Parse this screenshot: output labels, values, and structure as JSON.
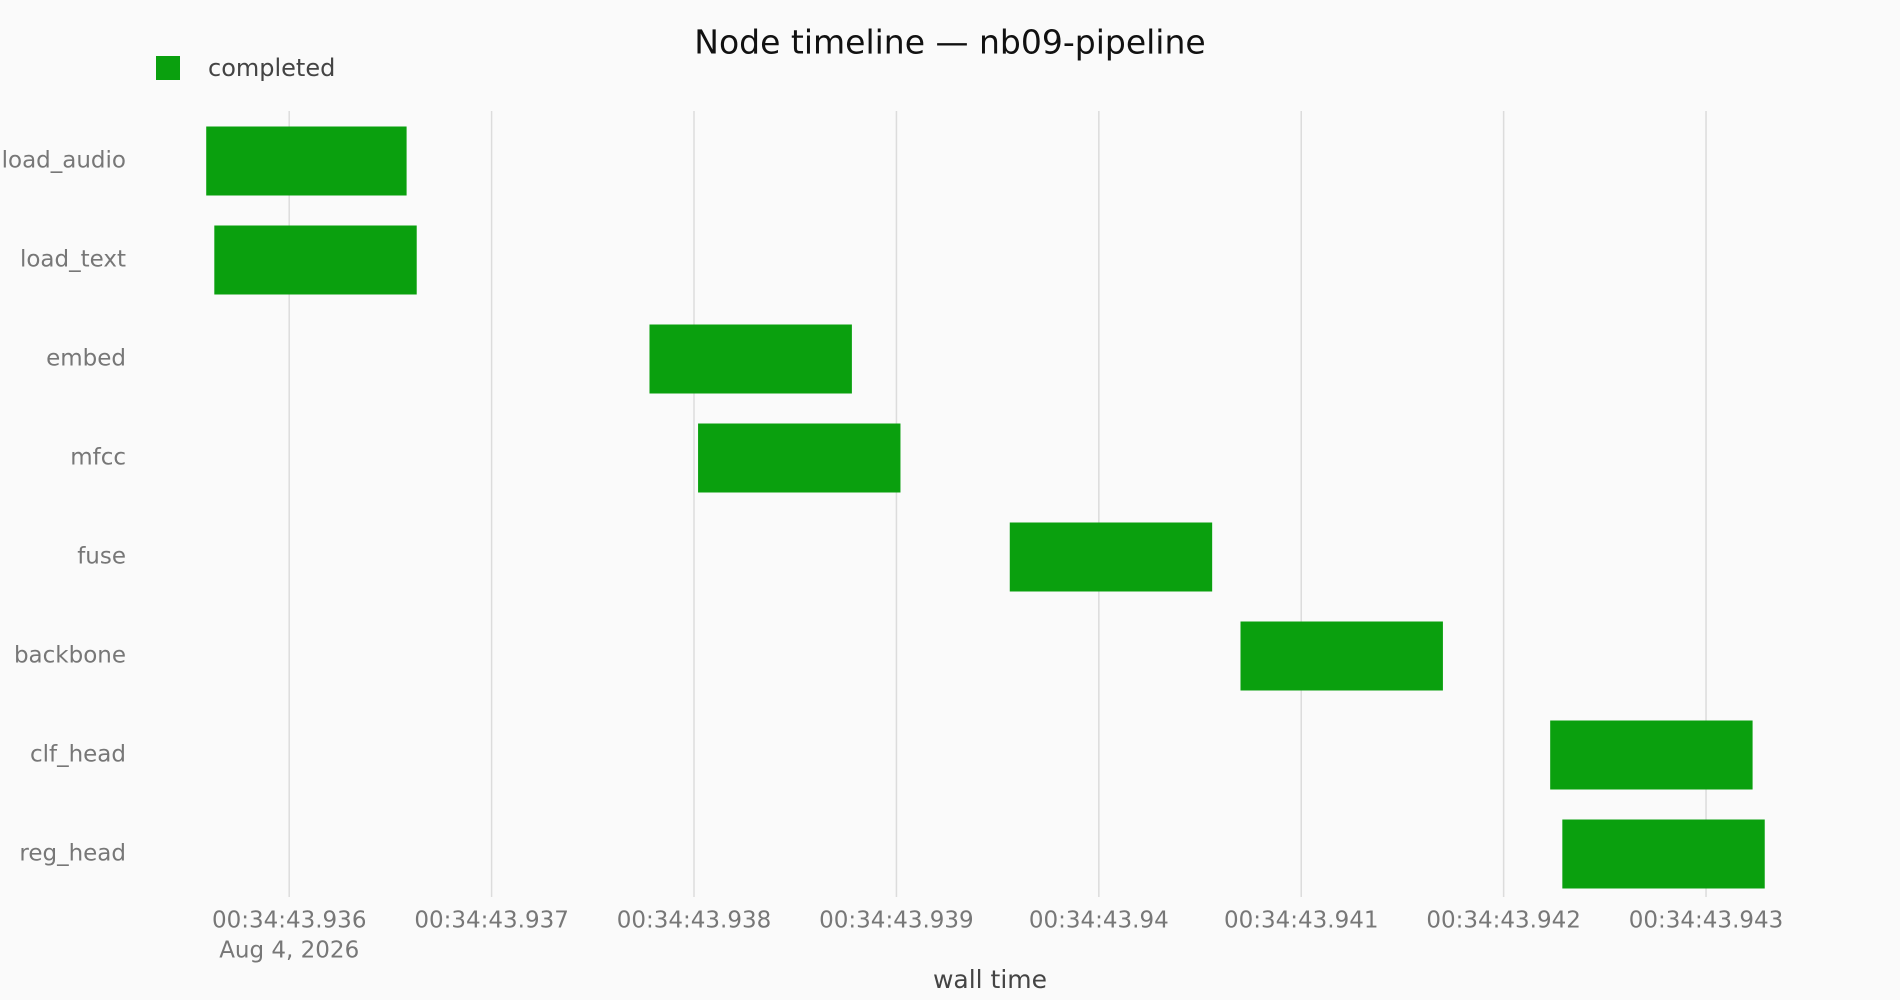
{
  "chart_data": {
    "type": "gantt",
    "title": "Node timeline — nb09-pipeline",
    "x_label": "wall time",
    "x_date_label": "Aug 4, 2026",
    "categories": [
      "load_audio",
      "load_text",
      "embed",
      "mfcc",
      "fuse",
      "backbone",
      "clf_head",
      "reg_head"
    ],
    "series": [
      {
        "name": "completed",
        "color": "#0aa00e",
        "start": [
          43.93559,
          43.93563,
          43.93778,
          43.93802,
          43.93956,
          43.9407,
          43.94223,
          43.94229
        ],
        "end": [
          43.93658,
          43.93663,
          43.93878,
          43.93902,
          43.94056,
          43.9417,
          43.94323,
          43.94329
        ]
      }
    ],
    "xlim": [
      43.9355,
      43.9434
    ],
    "xticks": [
      {
        "value": 43.936,
        "label": "00:34:43.936"
      },
      {
        "value": 43.937,
        "label": "00:34:43.937"
      },
      {
        "value": 43.938,
        "label": "00:34:43.938"
      },
      {
        "value": 43.939,
        "label": "00:34:43.939"
      },
      {
        "value": 43.94,
        "label": "00:34:43.94"
      },
      {
        "value": 43.941,
        "label": "00:34:43.941"
      },
      {
        "value": 43.942,
        "label": "00:34:43.942"
      },
      {
        "value": 43.943,
        "label": "00:34:43.943"
      }
    ],
    "grid": true,
    "legend": "top-left"
  }
}
